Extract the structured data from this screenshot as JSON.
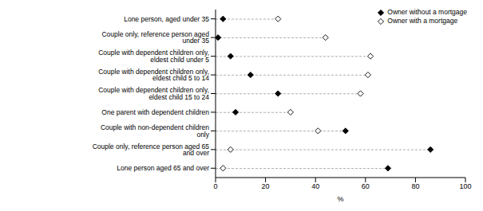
{
  "chart_data": {
    "type": "dot",
    "orientation": "horizontal",
    "xlabel": "%",
    "xlim": [
      0,
      100
    ],
    "xticks": [
      0,
      20,
      40,
      60,
      80,
      100
    ],
    "grid": false,
    "legend": "upper right",
    "line_style": "dashed",
    "categories": [
      "Lone person, aged under 35",
      "Couple only, reference person aged under 35",
      "Couple with dependent children only, eldest child under 5",
      "Couple with dependent children only, eldest child 5 to 14",
      "Couple with dependent children only, eldest child 15 to 24",
      "One parent with dependent children",
      "Couple with non-dependent children only",
      "Couple only, reference person aged 65 and over",
      "Lone person aged 65 and over"
    ],
    "series": [
      {
        "name": "Owner without a mortgage",
        "color": "#000000",
        "marker": "diamond",
        "values": [
          3,
          1,
          6,
          14,
          25,
          8,
          52,
          86,
          69
        ]
      },
      {
        "name": "Owner with a mortgage",
        "color": "#000000",
        "marker": "open_diamond",
        "values": [
          25,
          44,
          62,
          61,
          58,
          30,
          41,
          6,
          3
        ]
      }
    ]
  }
}
